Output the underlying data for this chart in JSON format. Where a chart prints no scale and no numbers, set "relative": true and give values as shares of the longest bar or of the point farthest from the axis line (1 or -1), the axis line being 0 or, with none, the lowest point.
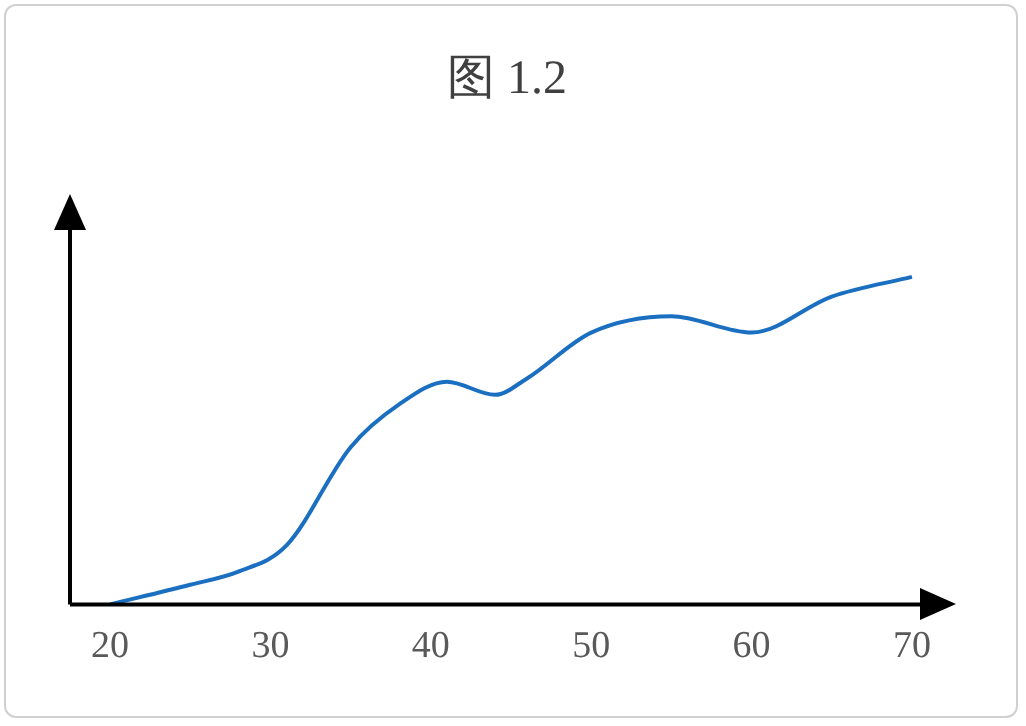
{
  "chart_data": {
    "type": "line",
    "title": "图 1.2",
    "relative": true,
    "x": [
      20,
      25,
      28,
      31,
      35,
      38,
      41,
      44,
      46,
      50,
      55,
      60,
      65,
      70
    ],
    "xlim": [
      17.5,
      72
    ],
    "xticks": [
      20,
      30,
      40,
      50,
      60,
      70
    ],
    "series": [
      {
        "color": "#1a6fc1",
        "values": [
          0,
          0.06,
          0.1,
          0.18,
          0.48,
          0.61,
          0.68,
          0.64,
          0.69,
          0.83,
          0.88,
          0.83,
          0.94,
          1
        ]
      }
    ],
    "grid": false,
    "legend": false,
    "marker": "none",
    "line_style": "solid",
    "tick_labels": "x"
  }
}
